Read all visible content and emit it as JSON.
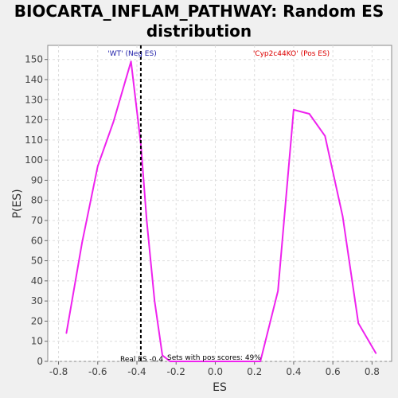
{
  "chart_data": {
    "type": "line",
    "title_line1": "BIOCARTA_INFLAM_PATHWAY: Random ES",
    "title_line2": "distribution",
    "xlabel": "ES",
    "ylabel": "P(ES)",
    "xlim": [
      -0.855,
      0.9
    ],
    "ylim": [
      0,
      157
    ],
    "x_ticks": [
      -0.8,
      -0.6,
      -0.4,
      -0.2,
      0.0,
      0.2,
      0.4,
      0.6,
      0.8
    ],
    "x_tick_labels": [
      "-0.8",
      "-0.6",
      "-0.4",
      "-0.2",
      "0.0",
      "0.2",
      "0.4",
      "0.6",
      "0.8"
    ],
    "y_ticks": [
      0,
      10,
      20,
      30,
      40,
      50,
      60,
      70,
      80,
      90,
      100,
      110,
      120,
      130,
      140,
      150
    ],
    "y_tick_labels": [
      "0",
      "10",
      "20",
      "30",
      "40",
      "50",
      "60",
      "70",
      "80",
      "90",
      "100",
      "110",
      "120",
      "130",
      "140",
      "150"
    ],
    "grid": true,
    "series": [
      {
        "color": "#ee22ee",
        "points": [
          [
            -0.76,
            14
          ],
          [
            -0.68,
            59
          ],
          [
            -0.6,
            97
          ],
          [
            -0.52,
            119
          ],
          [
            -0.43,
            149
          ],
          [
            -0.38,
            108
          ],
          [
            -0.35,
            70
          ],
          [
            -0.31,
            30
          ],
          [
            -0.27,
            3
          ],
          [
            -0.23,
            0
          ],
          [
            -0.1,
            0
          ],
          [
            0.05,
            0
          ],
          [
            0.23,
            0
          ],
          [
            0.32,
            35
          ],
          [
            0.4,
            125
          ],
          [
            0.48,
            123
          ],
          [
            0.56,
            112
          ],
          [
            0.65,
            72
          ],
          [
            0.73,
            19
          ],
          [
            0.82,
            4
          ]
        ]
      }
    ],
    "real_es": -0.38,
    "annotations": {
      "neg_label": "'WT' (Neg ES)",
      "neg_color": "#2222aa",
      "pos_label": "'Cyp2c44KO' (Pos ES)",
      "pos_color": "#dd0000",
      "real_es_text": "Real ES -0.4",
      "pos_scores_text": "Sets with pos scores: 49%"
    }
  }
}
